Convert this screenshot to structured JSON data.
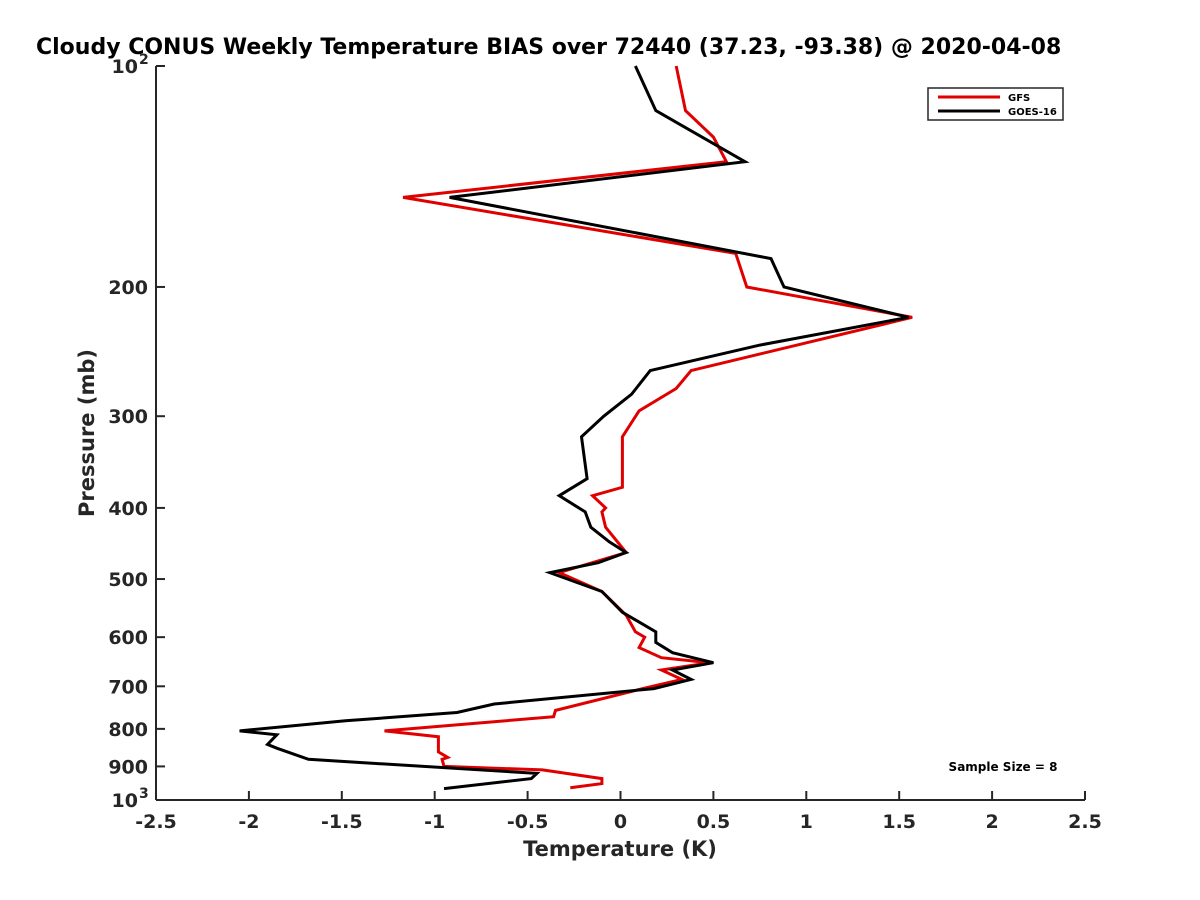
{
  "chart_data": {
    "type": "line",
    "title": "Cloudy CONUS Weekly Temperature BIAS over 72440 (37.23, -93.38) @ 2020-04-08",
    "xlabel": "Temperature (K)",
    "ylabel": "Pressure (mb)",
    "xlim": [
      -2.5,
      2.5
    ],
    "ylim": [
      100,
      1000
    ],
    "y_scale": "log",
    "y_reversed": true,
    "grid": false,
    "legend_position": "top-right",
    "x_ticks": [
      -2.5,
      -2,
      -1.5,
      -1,
      -0.5,
      0,
      0.5,
      1,
      1.5,
      2,
      2.5
    ],
    "x_tick_labels": [
      "-2.5",
      "-2",
      "-1.5",
      "-1",
      "-0.5",
      "0",
      "0.5",
      "1",
      "1.5",
      "2",
      "2.5"
    ],
    "y_ticks": [
      100,
      200,
      300,
      400,
      500,
      600,
      700,
      800,
      900,
      1000
    ],
    "y_tick_labels": [
      {
        "base": "10",
        "exp": "2"
      },
      {
        "base": "200",
        "exp": ""
      },
      {
        "base": "300",
        "exp": ""
      },
      {
        "base": "400",
        "exp": ""
      },
      {
        "base": "500",
        "exp": ""
      },
      {
        "base": "600",
        "exp": ""
      },
      {
        "base": "700",
        "exp": ""
      },
      {
        "base": "800",
        "exp": ""
      },
      {
        "base": "900",
        "exp": ""
      },
      {
        "base": "10",
        "exp": "3"
      }
    ],
    "annotation": "Sample Size = 8",
    "series": [
      {
        "name": "GFS",
        "color": "#e00000",
        "points": [
          [
            0.3,
            100
          ],
          [
            0.35,
            115
          ],
          [
            0.5,
            125
          ],
          [
            0.57,
            135
          ],
          [
            -1.17,
            151
          ],
          [
            0.62,
            180
          ],
          [
            0.68,
            200
          ],
          [
            1.57,
            220
          ],
          [
            0.38,
            260
          ],
          [
            0.3,
            275
          ],
          [
            0.1,
            295
          ],
          [
            0.01,
            320
          ],
          [
            0.01,
            375
          ],
          [
            -0.15,
            385
          ],
          [
            -0.08,
            400
          ],
          [
            -0.1,
            405
          ],
          [
            -0.08,
            425
          ],
          [
            0.03,
            460
          ],
          [
            -0.33,
            490
          ],
          [
            -0.1,
            520
          ],
          [
            0.03,
            560
          ],
          [
            0.08,
            590
          ],
          [
            0.13,
            600
          ],
          [
            0.1,
            620
          ],
          [
            0.22,
            640
          ],
          [
            0.48,
            650
          ],
          [
            0.22,
            665
          ],
          [
            0.33,
            685
          ],
          [
            0.12,
            705
          ],
          [
            -0.35,
            755
          ],
          [
            -0.36,
            770
          ],
          [
            -1.27,
            805
          ],
          [
            -0.98,
            820
          ],
          [
            -0.98,
            860
          ],
          [
            -0.93,
            875
          ],
          [
            -0.96,
            880
          ],
          [
            -0.95,
            900
          ],
          [
            -0.42,
            910
          ],
          [
            -0.1,
            935
          ],
          [
            -0.1,
            950
          ],
          [
            -0.27,
            962
          ]
        ]
      },
      {
        "name": "GOES-16",
        "color": "#000000",
        "points": [
          [
            0.08,
            100
          ],
          [
            0.19,
            115
          ],
          [
            0.67,
            135
          ],
          [
            -0.92,
            151
          ],
          [
            0.81,
            183
          ],
          [
            0.88,
            200
          ],
          [
            1.55,
            220
          ],
          [
            0.75,
            240
          ],
          [
            0.16,
            260
          ],
          [
            0.06,
            280
          ],
          [
            -0.09,
            300
          ],
          [
            -0.21,
            320
          ],
          [
            -0.18,
            365
          ],
          [
            -0.33,
            385
          ],
          [
            -0.19,
            405
          ],
          [
            -0.16,
            425
          ],
          [
            -0.06,
            445
          ],
          [
            0.03,
            460
          ],
          [
            -0.12,
            475
          ],
          [
            -0.38,
            490
          ],
          [
            -0.1,
            520
          ],
          [
            0.01,
            555
          ],
          [
            0.19,
            590
          ],
          [
            0.19,
            610
          ],
          [
            0.28,
            630
          ],
          [
            0.5,
            650
          ],
          [
            0.28,
            665
          ],
          [
            0.38,
            685
          ],
          [
            0.18,
            705
          ],
          [
            -0.68,
            740
          ],
          [
            -0.88,
            760
          ],
          [
            -1.48,
            780
          ],
          [
            -2.05,
            805
          ],
          [
            -1.85,
            815
          ],
          [
            -1.9,
            840
          ],
          [
            -1.85,
            850
          ],
          [
            -1.68,
            880
          ],
          [
            -0.45,
            920
          ],
          [
            -0.48,
            935
          ],
          [
            -0.95,
            965
          ]
        ]
      }
    ]
  }
}
